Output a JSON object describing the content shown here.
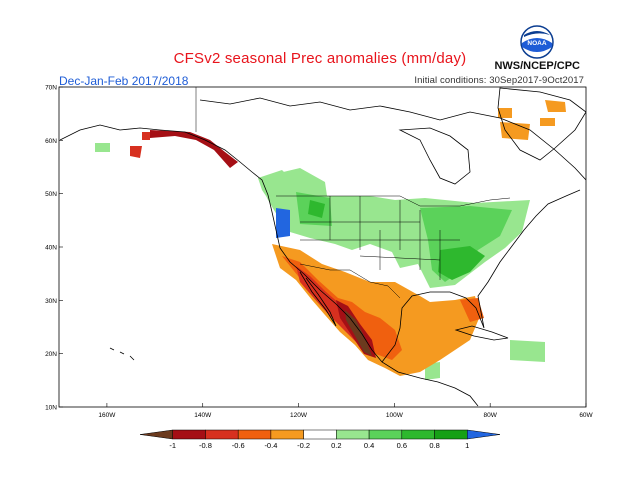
{
  "header": {
    "title": "CFSv2 seasonal Prec anomalies (mm/day)",
    "season": "Dec-Jan-Feb 2017/2018",
    "initial_conditions": "Initial conditions: 30Sep2017-9Oct2017",
    "agency": "NWS/NCEP/CPC",
    "logo_text": "NOAA"
  },
  "map": {
    "lat_labels": [
      "70N",
      "60N",
      "50N",
      "40N",
      "30N",
      "20N",
      "10N"
    ],
    "lon_labels": [
      "160W",
      "140W",
      "120W",
      "100W",
      "80W",
      "60W"
    ],
    "lon_range": [
      -170,
      -60
    ],
    "lat_range": [
      10,
      70
    ]
  },
  "legend": {
    "tick_labels": [
      "-1",
      "-0.8",
      "-0.6",
      "-0.4",
      "-0.2",
      "0.2",
      "0.4",
      "0.6",
      "0.8",
      "1"
    ],
    "colors": [
      "#6b3a1e",
      "#a50f15",
      "#d7301f",
      "#f0600f",
      "#f59a20",
      "#ffffff",
      "#98e68f",
      "#5bd25a",
      "#2eb82e",
      "#16a016",
      "#2266e0"
    ]
  },
  "colors": {
    "title": "#e8141c",
    "season": "#1e5cd6",
    "coast": "#000000"
  }
}
